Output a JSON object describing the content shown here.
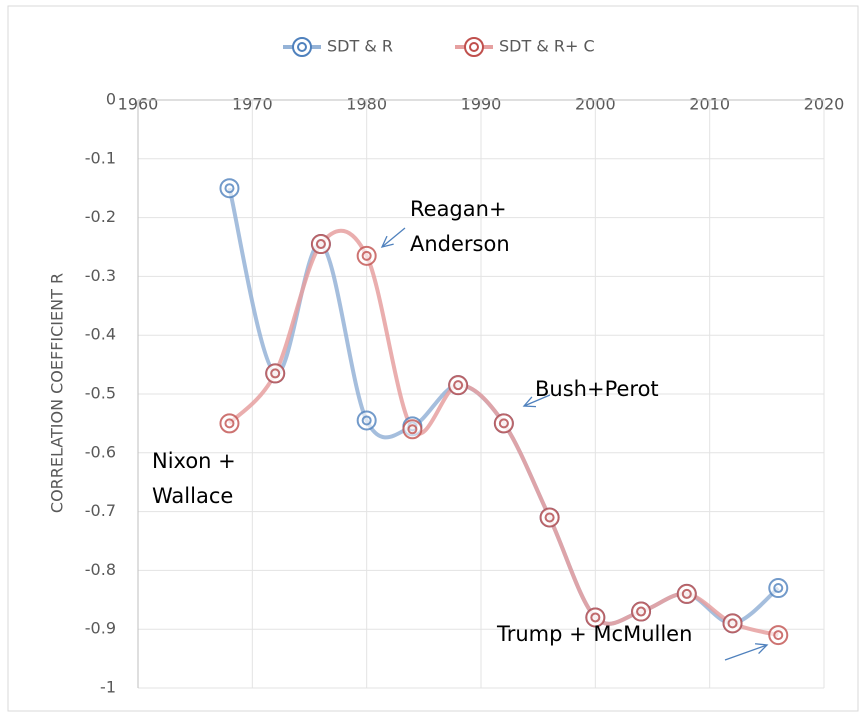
{
  "chart_data": {
    "type": "line",
    "x": [
      1968,
      1972,
      1976,
      1980,
      1984,
      1988,
      1992,
      1996,
      2000,
      2004,
      2008,
      2012,
      2016
    ],
    "series": [
      {
        "name": "SDT & R",
        "color": "#4f81bd",
        "values": [
          -0.15,
          -0.465,
          -0.245,
          -0.545,
          -0.555,
          -0.485,
          -0.55,
          -0.71,
          -0.88,
          -0.87,
          -0.84,
          -0.89,
          -0.83
        ]
      },
      {
        "name": "SDT & R+ C",
        "color": "#c0504d",
        "values": [
          -0.55,
          -0.465,
          -0.245,
          -0.265,
          -0.56,
          -0.485,
          -0.55,
          -0.71,
          -0.88,
          -0.87,
          -0.84,
          -0.89,
          -0.91
        ]
      }
    ],
    "ylabel": "CORRELATION COEFFICIENT R",
    "xlim": [
      1960,
      2020
    ],
    "xticks": [
      1960,
      1970,
      1980,
      1990,
      2000,
      2010,
      2020
    ],
    "ylim": [
      -1,
      0
    ],
    "yticks": [
      0,
      -0.1,
      -0.2,
      -0.3,
      -0.4,
      -0.5,
      -0.6,
      -0.7,
      -0.8,
      -0.9,
      -1
    ],
    "grid": true,
    "legend": "top",
    "annotations": [
      {
        "lines": [
          "Reagan+",
          "Anderson"
        ]
      },
      {
        "lines": [
          "Bush+Perot"
        ]
      },
      {
        "lines": [
          "Nixon +",
          "Wallace"
        ]
      },
      {
        "lines": [
          "Trump + McMullen"
        ]
      }
    ]
  }
}
